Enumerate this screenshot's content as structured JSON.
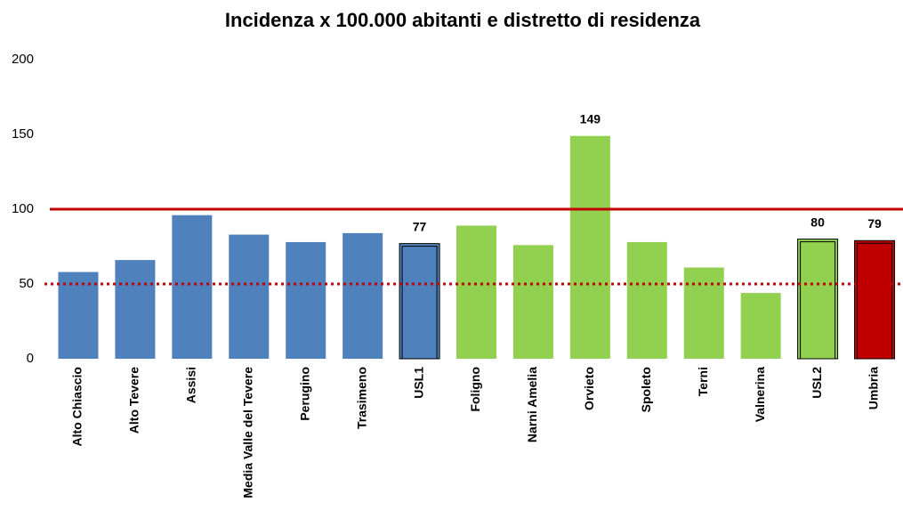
{
  "chart_data": {
    "type": "bar",
    "title": "Incidenza x 100.000 abitanti e distretto di residenza",
    "categories": [
      "Alto Chiascio",
      "Alto Tevere",
      "Assisi",
      "Media Valle del Tevere",
      "Perugino",
      "Trasimeno",
      "USL1",
      "Foligno",
      "Narni Amelia",
      "Orvieto",
      "Spoleto",
      "Terni",
      "Valnerina",
      "USL2",
      "Umbria"
    ],
    "values": [
      58,
      66,
      96,
      83,
      78,
      84,
      77,
      89,
      76,
      149,
      78,
      61,
      44,
      80,
      79
    ],
    "value_labels": [
      null,
      null,
      null,
      null,
      null,
      null,
      "77",
      null,
      null,
      "149",
      null,
      null,
      null,
      "80",
      "79"
    ],
    "colors": [
      "#4f81bd",
      "#4f81bd",
      "#4f81bd",
      "#4f81bd",
      "#4f81bd",
      "#4f81bd",
      "#4f81bd",
      "#92d050",
      "#92d050",
      "#92d050",
      "#92d050",
      "#92d050",
      "#92d050",
      "#92d050",
      "#c00000"
    ],
    "outlined": [
      false,
      false,
      false,
      false,
      false,
      false,
      true,
      false,
      false,
      false,
      false,
      false,
      false,
      true,
      true
    ],
    "reference_lines": [
      {
        "value": 100,
        "color": "#c00000",
        "style": "solid"
      },
      {
        "value": 50,
        "color": "#c00000",
        "style": "dotted"
      }
    ],
    "ylim": [
      0,
      200
    ],
    "yticks": [
      0,
      50,
      100,
      150,
      200
    ],
    "grid": false
  }
}
